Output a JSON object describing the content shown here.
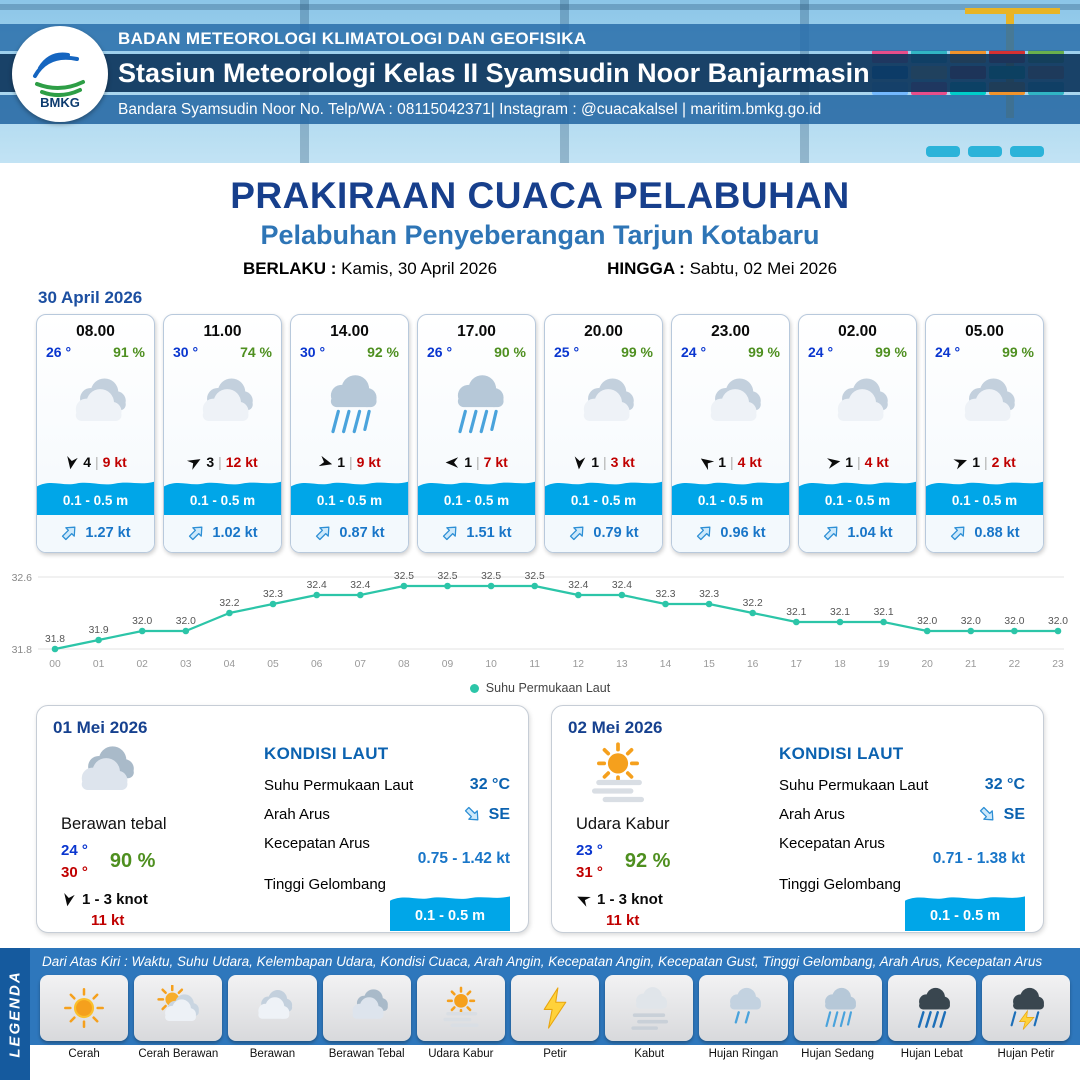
{
  "header": {
    "logo_text": "BMKG",
    "agency": "BADAN METEOROLOGI KLIMATOLOGI DAN GEOFISIKA",
    "station": "Stasiun Meteorologi Kelas II Syamsudin Noor Banjarmasin",
    "contact": "Bandara Syamsudin Noor No. Telp/WA : 08115042371| Instagram : @cuacakalsel | maritim.bmkg.go.id"
  },
  "title": {
    "main": "PRAKIRAAN CUACA PELABUHAN",
    "subtitle": "Pelabuhan Penyeberangan Tarjun Kotabaru",
    "berlaku_label": "BERLAKU :",
    "berlaku_value": "Kamis, 30 April 2026",
    "hingga_label": "HINGGA :",
    "hingga_value": "Sabtu, 02 Mei 2026"
  },
  "forecast_date": "30 April 2026",
  "hourly": [
    {
      "time": "08.00",
      "temp": "26 °",
      "humidity": "91 %",
      "icon": "berawan",
      "wind_deg": 100,
      "wind_val": "4",
      "wind_kt": "9 kt",
      "wave": "0.1 - 0.5 m",
      "current_kt": "1.27 kt"
    },
    {
      "time": "11.00",
      "temp": "30 °",
      "humidity": "74 %",
      "icon": "berawan",
      "wind_deg": -30,
      "wind_val": "3",
      "wind_kt": "12 kt",
      "wave": "0.1 - 0.5 m",
      "current_kt": "1.02 kt"
    },
    {
      "time": "14.00",
      "temp": "30 °",
      "humidity": "92 %",
      "icon": "hujan-sedang",
      "wind_deg": 15,
      "wind_val": "1",
      "wind_kt": "9 kt",
      "wave": "0.1 - 0.5 m",
      "current_kt": "0.87 kt"
    },
    {
      "time": "17.00",
      "temp": "26 °",
      "humidity": "90 %",
      "icon": "hujan-sedang",
      "wind_deg": 180,
      "wind_val": "1",
      "wind_kt": "7 kt",
      "wave": "0.1 - 0.5 m",
      "current_kt": "1.51 kt"
    },
    {
      "time": "20.00",
      "temp": "25 °",
      "humidity": "99 %",
      "icon": "berawan",
      "wind_deg": 95,
      "wind_val": "1",
      "wind_kt": "3 kt",
      "wave": "0.1 - 0.5 m",
      "current_kt": "0.79 kt"
    },
    {
      "time": "23.00",
      "temp": "24 °",
      "humidity": "99 %",
      "icon": "berawan",
      "wind_deg": 215,
      "wind_val": "1",
      "wind_kt": "4 kt",
      "wave": "0.1 - 0.5 m",
      "current_kt": "0.96 kt"
    },
    {
      "time": "02.00",
      "temp": "24 °",
      "humidity": "99 %",
      "icon": "berawan",
      "wind_deg": -10,
      "wind_val": "1",
      "wind_kt": "4 kt",
      "wave": "0.1 - 0.5 m",
      "current_kt": "1.04 kt"
    },
    {
      "time": "05.00",
      "temp": "24 °",
      "humidity": "99 %",
      "icon": "berawan",
      "wind_deg": -20,
      "wind_val": "1",
      "wind_kt": "2 kt",
      "wave": "0.1 - 0.5 m",
      "current_kt": "0.88 kt"
    }
  ],
  "chart_data": {
    "type": "line",
    "title": "",
    "xlabel": "",
    "ylabel": "",
    "x": [
      "00",
      "01",
      "02",
      "03",
      "04",
      "05",
      "06",
      "07",
      "08",
      "09",
      "10",
      "11",
      "12",
      "13",
      "14",
      "15",
      "16",
      "17",
      "18",
      "19",
      "20",
      "21",
      "22",
      "23"
    ],
    "series": [
      {
        "name": "Suhu Permukaan Laut",
        "values": [
          31.8,
          31.9,
          32.0,
          32.0,
          32.2,
          32.3,
          32.4,
          32.4,
          32.5,
          32.5,
          32.5,
          32.5,
          32.4,
          32.4,
          32.3,
          32.3,
          32.2,
          32.1,
          32.1,
          32.1,
          32.0,
          32.0,
          32.0,
          32.0
        ]
      }
    ],
    "ylim": [
      31.8,
      32.6
    ],
    "y_ticks": [
      "32.6",
      "31.8"
    ],
    "grid": true,
    "legend_position": "bottom",
    "legend_label": "Suhu Permukaan Laut",
    "line_color": "#2cc5a8"
  },
  "daily": [
    {
      "date": "01 Mei 2026",
      "icon": "berawan-tebal",
      "condition": "Berawan tebal",
      "temp_min": "24 °",
      "temp_max": "30 °",
      "humidity": "90 %",
      "wind_deg": 100,
      "wind_range": "1  - 3 knot",
      "gust": "11 kt",
      "sea": {
        "heading": "KONDISI LAUT",
        "sst_label": "Suhu Permukaan Laut",
        "sst": "32 °C",
        "current_dir_label": "Arah Arus",
        "current_dir": "SE",
        "current_speed_label": "Kecepatan Arus",
        "current_speed": "0.75 - 1.42 kt",
        "wave_label": "Tinggi Gelombang",
        "wave": "0.1 - 0.5 m"
      }
    },
    {
      "date": "02 Mei 2026",
      "icon": "udara-kabur",
      "condition": "Udara Kabur",
      "temp_min": "23 °",
      "temp_max": "31 °",
      "humidity": "92 %",
      "wind_deg": 205,
      "wind_range": "1  - 3 knot",
      "gust": "11 kt",
      "sea": {
        "heading": "KONDISI LAUT",
        "sst_label": "Suhu Permukaan Laut",
        "sst": "32 °C",
        "current_dir_label": "Arah Arus",
        "current_dir": "SE",
        "current_speed_label": "Kecepatan Arus",
        "current_speed": "0.71 - 1.38 kt",
        "wave_label": "Tinggi Gelombang",
        "wave": "0.1 - 0.5 m"
      }
    }
  ],
  "legend": {
    "title": "LEGENDA",
    "description": "Dari Atas Kiri : Waktu, Suhu Udara, Kelembapan Udara, Kondisi Cuaca, Arah Angin, Kecepatan Angin, Kecepatan Gust, Tinggi Gelombang, Arah Arus, Kecepatan Arus",
    "items": [
      {
        "label": "Cerah",
        "icon": "cerah"
      },
      {
        "label": "Cerah Berawan",
        "icon": "cerah-berawan"
      },
      {
        "label": "Berawan",
        "icon": "berawan"
      },
      {
        "label": "Berawan Tebal",
        "icon": "berawan-tebal"
      },
      {
        "label": "Udara Kabur",
        "icon": "udara-kabur"
      },
      {
        "label": "Petir",
        "icon": "petir"
      },
      {
        "label": "Kabut",
        "icon": "kabut"
      },
      {
        "label": "Hujan Ringan",
        "icon": "hujan-ringan"
      },
      {
        "label": "Hujan Sedang",
        "icon": "hujan-sedang"
      },
      {
        "label": "Hujan Lebat",
        "icon": "hujan-lebat"
      },
      {
        "label": "Hujan Petir",
        "icon": "hujan-petir"
      }
    ]
  }
}
